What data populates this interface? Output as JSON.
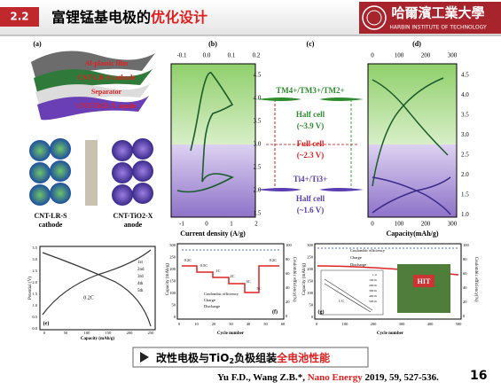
{
  "header": {
    "section": "2.2",
    "title": "富锂锰基电极的",
    "title_highlight": "优化设计",
    "university": "哈爾濱工業大學",
    "university_en": "HARBIN INSTITUTE OF TECHNOLOGY"
  },
  "figure": {
    "a": {
      "label": "(a)",
      "layers": [
        "Al-plastic film",
        "CNT-LR-S cathode",
        "Separator",
        "CNT-TiO2-X anode"
      ],
      "cathode": [
        "CNT-LR-S",
        "cathode"
      ],
      "anode": [
        "CNT-TiO2-X",
        "anode"
      ]
    },
    "b": {
      "label": "(b)",
      "top_ticks": [
        "-0.1",
        "0.0",
        "0.1",
        "0.2"
      ],
      "bottom_ticks": [
        "-1",
        "0",
        "1",
        "2"
      ],
      "xlabel": "Current density (A/g)"
    },
    "c": {
      "label": "(c)",
      "yticks": [
        "4.5",
        "4.0",
        "3.5",
        "3.0",
        "2.5",
        "2.0",
        "1.5"
      ],
      "redox_high": "TM4+/TM3+/TM2+",
      "half_high": [
        "Half cell",
        "(~3.9 V)"
      ],
      "full": [
        "Full cell",
        "(~2.3 V)"
      ],
      "redox_low": "Ti4+/Ti3+",
      "half_low": [
        "Half cell",
        "(~1.6 V)"
      ]
    },
    "d": {
      "label": "(d)",
      "top_ticks": [
        "0",
        "100",
        "200",
        "300"
      ],
      "bottom_ticks": [
        "0",
        "100",
        "200",
        "300"
      ],
      "yticks": [
        "4.5",
        "4.0",
        "3.5",
        "3.0",
        "2.5",
        "2.0",
        "1.5",
        "1.0"
      ],
      "xlabel": "Capacity(mAh/g)"
    },
    "e": {
      "label": "(e)",
      "ylabel": "Potential (V)",
      "xlabel": "Capacity (mAh/g)",
      "legend": [
        "1st",
        "2nd",
        "3rd",
        "4th",
        "5th"
      ],
      "rate": "0.2C",
      "yticks": [
        "3.5",
        "3.0",
        "2.5",
        "2.0",
        "1.5",
        "1.0",
        "0.5",
        "0.0"
      ],
      "xticks": [
        "0",
        "50",
        "100",
        "150",
        "200",
        "250"
      ]
    },
    "f": {
      "label": "(f)",
      "ylabel": "Capacity (mAh/g)",
      "y2label": "Coulombic efficiency(%)",
      "xlabel": "Cycle number",
      "rates": [
        "0.2C",
        "0.5C",
        "1C",
        "2C",
        "3C",
        "5C",
        "0.2C"
      ],
      "legend": [
        "Coulombic efficiency",
        "Charge",
        "Discharge"
      ],
      "yticks": [
        "300",
        "250",
        "200",
        "150",
        "100",
        "50",
        "0"
      ],
      "y2ticks": [
        "100",
        "80",
        "60",
        "40",
        "20",
        "0"
      ],
      "xticks": [
        "0",
        "10",
        "20",
        "30",
        "40",
        "50",
        "60"
      ]
    },
    "g": {
      "label": "(g)",
      "legend": [
        "Coulombic efficiency",
        "Charge",
        "Discharge"
      ],
      "rate": "1 C",
      "xlabel": "Cycle number",
      "ylabel": "Capacity (mAh/g)",
      "y2label": "Coulombic efficiency(%)",
      "yticks": [
        "300",
        "250",
        "200",
        "150",
        "100",
        "50",
        "0"
      ],
      "y2ticks": [
        "100",
        "80",
        "60",
        "40",
        "20",
        "0"
      ],
      "xticks": [
        "0",
        "100",
        "200",
        "300",
        "400",
        "500"
      ],
      "photo_text": "HIT",
      "inset_legend": [
        "1 st",
        "100 th",
        "200 th",
        "300 th",
        "400 th",
        "500 th"
      ]
    }
  },
  "footer": {
    "caption": "改性电极与TiO",
    "caption_sub": "2",
    "caption_mid": "负极组装",
    "caption_highlight": "全电池性能",
    "citation": "Yu F.D., Wang Z.B.*, ",
    "journal": "Nano Energy",
    "citation_end": " 2019, 59, 527-536.",
    "page": "16"
  }
}
